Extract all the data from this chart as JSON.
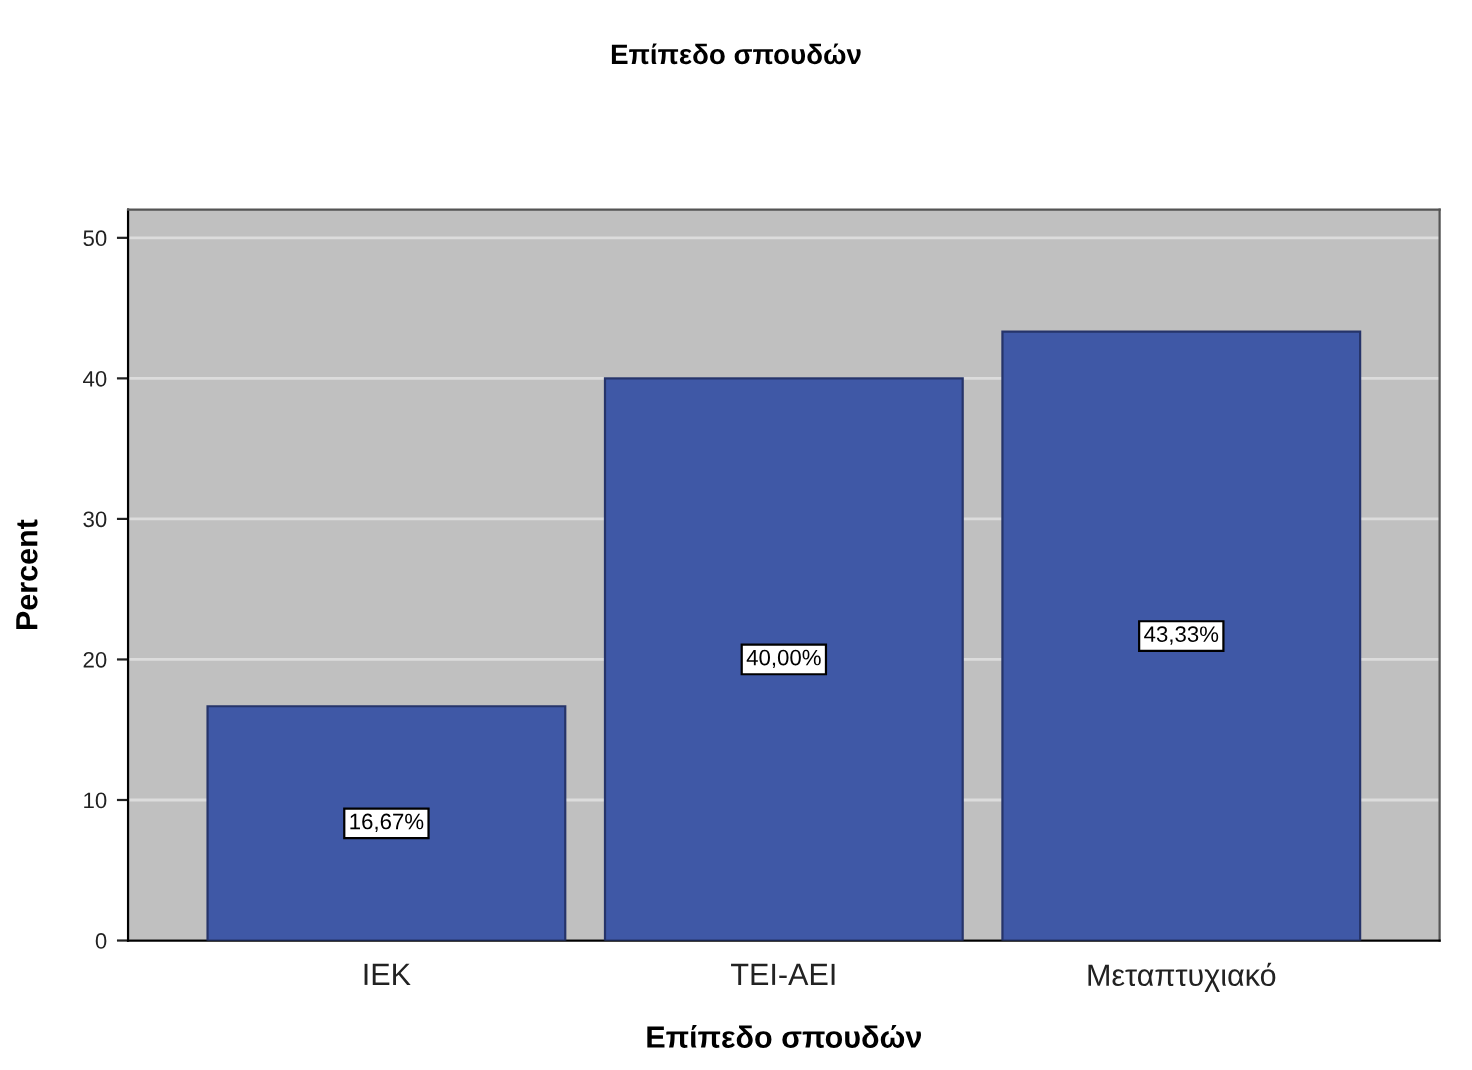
{
  "chart_data": {
    "type": "bar",
    "title": "Επίπεδο σπουδών",
    "xlabel": "Επίπεδο σπουδών",
    "ylabel": "Percent",
    "categories": [
      "ΙΕΚ",
      "ΤΕΙ-ΑΕΙ",
      "Μεταπτυχιακό"
    ],
    "values": [
      16.67,
      40.0,
      43.33
    ],
    "value_labels": [
      "16,67%",
      "40,00%",
      "43,33%"
    ],
    "color": "#3f58a6",
    "ylim": [
      0,
      52
    ],
    "yticks": [
      0,
      10,
      20,
      30,
      40,
      50
    ],
    "grid": "y"
  }
}
